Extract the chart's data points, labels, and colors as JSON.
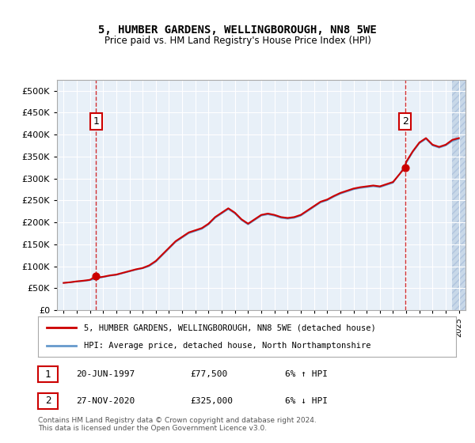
{
  "title": "5, HUMBER GARDENS, WELLINGBOROUGH, NN8 5WE",
  "subtitle": "Price paid vs. HM Land Registry's House Price Index (HPI)",
  "legend_line1": "5, HUMBER GARDENS, WELLINGBOROUGH, NN8 5WE (detached house)",
  "legend_line2": "HPI: Average price, detached house, North Northamptonshire",
  "footer": "Contains HM Land Registry data © Crown copyright and database right 2024.\nThis data is licensed under the Open Government Licence v3.0.",
  "annotation1_label": "1",
  "annotation1_date": "20-JUN-1997",
  "annotation1_price": "£77,500",
  "annotation1_hpi": "6% ↑ HPI",
  "annotation2_label": "2",
  "annotation2_date": "27-NOV-2020",
  "annotation2_price": "£325,000",
  "annotation2_hpi": "6% ↓ HPI",
  "sale1_x": 1997.47,
  "sale1_y": 77500,
  "sale2_x": 2020.91,
  "sale2_y": 325000,
  "price_line_color": "#cc0000",
  "hpi_line_color": "#6699cc",
  "bg_color": "#dce9f5",
  "plot_bg": "#e8f0f8",
  "hatch_color": "#b0c4de",
  "ylim_min": 0,
  "ylim_max": 525000,
  "xlim_min": 1994.5,
  "xlim_max": 2025.5,
  "yticks": [
    0,
    50000,
    100000,
    150000,
    200000,
    250000,
    300000,
    350000,
    400000,
    450000,
    500000
  ],
  "xticks": [
    1995,
    1996,
    1997,
    1998,
    1999,
    2000,
    2001,
    2002,
    2003,
    2004,
    2005,
    2006,
    2007,
    2008,
    2009,
    2010,
    2011,
    2012,
    2013,
    2014,
    2015,
    2016,
    2017,
    2018,
    2019,
    2020,
    2021,
    2022,
    2023,
    2024,
    2025
  ],
  "hpi_data": [
    [
      1995.0,
      62000
    ],
    [
      1995.5,
      63000
    ],
    [
      1996.0,
      65000
    ],
    [
      1996.5,
      66000
    ],
    [
      1997.0,
      68000
    ],
    [
      1997.5,
      72000
    ],
    [
      1998.0,
      75000
    ],
    [
      1998.5,
      78000
    ],
    [
      1999.0,
      80000
    ],
    [
      1999.5,
      84000
    ],
    [
      2000.0,
      88000
    ],
    [
      2000.5,
      92000
    ],
    [
      2001.0,
      95000
    ],
    [
      2001.5,
      100000
    ],
    [
      2002.0,
      110000
    ],
    [
      2002.5,
      125000
    ],
    [
      2003.0,
      140000
    ],
    [
      2003.5,
      155000
    ],
    [
      2004.0,
      165000
    ],
    [
      2004.5,
      175000
    ],
    [
      2005.0,
      180000
    ],
    [
      2005.5,
      185000
    ],
    [
      2006.0,
      195000
    ],
    [
      2006.5,
      210000
    ],
    [
      2007.0,
      220000
    ],
    [
      2007.5,
      230000
    ],
    [
      2008.0,
      220000
    ],
    [
      2008.5,
      205000
    ],
    [
      2009.0,
      195000
    ],
    [
      2009.5,
      205000
    ],
    [
      2010.0,
      215000
    ],
    [
      2010.5,
      218000
    ],
    [
      2011.0,
      215000
    ],
    [
      2011.5,
      210000
    ],
    [
      2012.0,
      208000
    ],
    [
      2012.5,
      210000
    ],
    [
      2013.0,
      215000
    ],
    [
      2013.5,
      225000
    ],
    [
      2014.0,
      235000
    ],
    [
      2014.5,
      245000
    ],
    [
      2015.0,
      250000
    ],
    [
      2015.5,
      258000
    ],
    [
      2016.0,
      265000
    ],
    [
      2016.5,
      270000
    ],
    [
      2017.0,
      275000
    ],
    [
      2017.5,
      278000
    ],
    [
      2018.0,
      280000
    ],
    [
      2018.5,
      282000
    ],
    [
      2019.0,
      280000
    ],
    [
      2019.5,
      285000
    ],
    [
      2020.0,
      290000
    ],
    [
      2020.5,
      310000
    ],
    [
      2021.0,
      335000
    ],
    [
      2021.5,
      360000
    ],
    [
      2022.0,
      380000
    ],
    [
      2022.5,
      390000
    ],
    [
      2023.0,
      375000
    ],
    [
      2023.5,
      370000
    ],
    [
      2024.0,
      375000
    ],
    [
      2024.5,
      385000
    ],
    [
      2025.0,
      390000
    ]
  ],
  "price_data": [
    [
      1995.0,
      62000
    ],
    [
      1995.5,
      63500
    ],
    [
      1996.0,
      65500
    ],
    [
      1996.5,
      67000
    ],
    [
      1997.0,
      69000
    ],
    [
      1997.47,
      77500
    ],
    [
      1997.5,
      74000
    ],
    [
      1998.0,
      76000
    ],
    [
      1998.5,
      79000
    ],
    [
      1999.0,
      81000
    ],
    [
      1999.5,
      85000
    ],
    [
      2000.0,
      89000
    ],
    [
      2000.5,
      93000
    ],
    [
      2001.0,
      96000
    ],
    [
      2001.5,
      102000
    ],
    [
      2002.0,
      112000
    ],
    [
      2002.5,
      127000
    ],
    [
      2003.0,
      142000
    ],
    [
      2003.5,
      157000
    ],
    [
      2004.0,
      167000
    ],
    [
      2004.5,
      177000
    ],
    [
      2005.0,
      182000
    ],
    [
      2005.5,
      187000
    ],
    [
      2006.0,
      197000
    ],
    [
      2006.5,
      212000
    ],
    [
      2007.0,
      222000
    ],
    [
      2007.5,
      232000
    ],
    [
      2008.0,
      222000
    ],
    [
      2008.5,
      207000
    ],
    [
      2009.0,
      197000
    ],
    [
      2009.5,
      207000
    ],
    [
      2010.0,
      217000
    ],
    [
      2010.5,
      220000
    ],
    [
      2011.0,
      217000
    ],
    [
      2011.5,
      212000
    ],
    [
      2012.0,
      210000
    ],
    [
      2012.5,
      212000
    ],
    [
      2013.0,
      217000
    ],
    [
      2013.5,
      227000
    ],
    [
      2014.0,
      237000
    ],
    [
      2014.5,
      247000
    ],
    [
      2015.0,
      252000
    ],
    [
      2015.5,
      260000
    ],
    [
      2016.0,
      267000
    ],
    [
      2016.5,
      272000
    ],
    [
      2017.0,
      277000
    ],
    [
      2017.5,
      280000
    ],
    [
      2018.0,
      282000
    ],
    [
      2018.5,
      284000
    ],
    [
      2019.0,
      282000
    ],
    [
      2019.5,
      287000
    ],
    [
      2020.0,
      292000
    ],
    [
      2020.91,
      325000
    ],
    [
      2021.0,
      338000
    ],
    [
      2021.5,
      362000
    ],
    [
      2022.0,
      382000
    ],
    [
      2022.5,
      392000
    ],
    [
      2023.0,
      377000
    ],
    [
      2023.5,
      372000
    ],
    [
      2024.0,
      377000
    ],
    [
      2024.5,
      388000
    ],
    [
      2025.0,
      392000
    ]
  ]
}
